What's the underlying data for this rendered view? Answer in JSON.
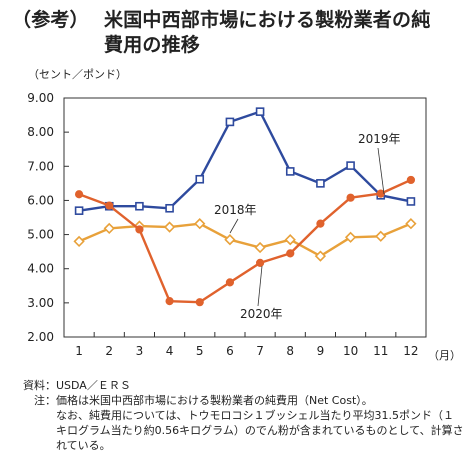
{
  "title": {
    "prefix": "（参考）",
    "line1": "米国中西部市場における製粉業者の純",
    "line2": "費用の推移"
  },
  "chart_data": {
    "type": "line",
    "ylabel": "（セント／ポンド）",
    "xlabel": "（月）",
    "ylim": [
      2.0,
      9.0
    ],
    "yticks": [
      "2.00",
      "3.00",
      "4.00",
      "5.00",
      "6.00",
      "7.00",
      "8.00",
      "9.00"
    ],
    "categories": [
      "1",
      "2",
      "3",
      "4",
      "5",
      "6",
      "7",
      "8",
      "9",
      "10",
      "11",
      "12"
    ],
    "grid": false,
    "series": [
      {
        "name": "2019年",
        "color": "#2e4a9e",
        "marker": "square",
        "values": [
          5.7,
          5.83,
          5.83,
          5.77,
          6.62,
          8.3,
          8.6,
          6.85,
          6.5,
          7.02,
          6.15,
          5.97
        ]
      },
      {
        "name": "2018年",
        "color": "#e8a13a",
        "marker": "diamond",
        "values": [
          4.8,
          5.18,
          5.25,
          5.22,
          5.32,
          4.85,
          4.62,
          4.85,
          4.37,
          4.92,
          4.95,
          5.32
        ]
      },
      {
        "name": "2020年",
        "color": "#e0622d",
        "marker": "circle",
        "values": [
          6.18,
          5.85,
          5.15,
          3.05,
          3.02,
          3.6,
          4.17,
          4.45,
          5.32,
          6.08,
          6.2,
          6.6
        ]
      }
    ]
  },
  "footnote": {
    "source_label": "資料：",
    "source": "USDA／ＥＲＳ",
    "note_label": "注：",
    "note_line1": "価格は米国中西部市場における製粉業者の純費用（Net Cost）。",
    "note_line2": "なお、純費用については、トウモロコシ１ブッシェル当たり平均31.5ポンド（１キログラム当たり約0.56キログラム）のでん粉が含まれているものとして、計算されている。"
  }
}
